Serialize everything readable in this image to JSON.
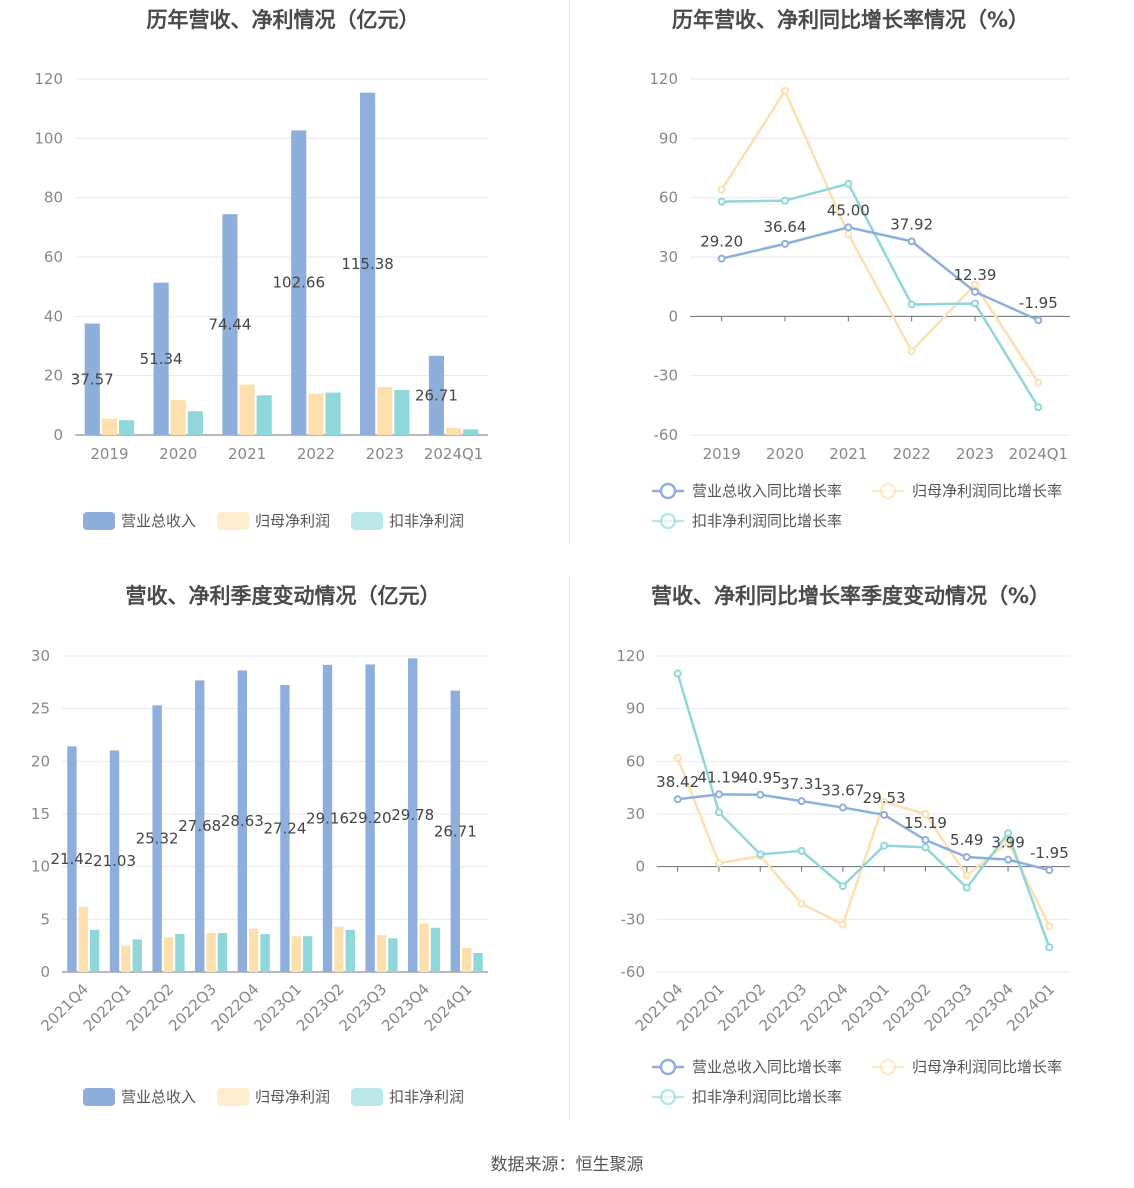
{
  "footer": "数据来源：恒生聚源",
  "legend_bar": [
    "营业总收入",
    "归母净利润",
    "扣非净利润"
  ],
  "legend_line": [
    "营业总收入同比增长率",
    "归母净利润同比增长率",
    "扣非净利润同比增长率"
  ],
  "colors": {
    "revenue": "#8eaedc",
    "netprofit": "#fde0ae",
    "deducted": "#8fd7d8",
    "grid": "#e6e9f0",
    "axis": "#6e7079",
    "tick": "#888888"
  },
  "chart_data": [
    {
      "type": "bar",
      "title": "历年营收、净利情况（亿元）",
      "categories": [
        "2019",
        "2020",
        "2021",
        "2022",
        "2023",
        "2024Q1"
      ],
      "ylim": [
        0,
        120
      ],
      "yticks": [
        0,
        20,
        40,
        60,
        80,
        100,
        120
      ],
      "series": [
        {
          "name": "营业总收入",
          "values": [
            37.57,
            51.34,
            74.44,
            102.66,
            115.38,
            26.71
          ],
          "labels": [
            "37.57",
            "51.34",
            "74.44",
            "102.66",
            "115.38",
            "26.71"
          ]
        },
        {
          "name": "归母净利润",
          "values": [
            5.5,
            11.8,
            17.0,
            13.9,
            16.2,
            2.4
          ]
        },
        {
          "name": "扣非净利润",
          "values": [
            5.0,
            8.0,
            13.4,
            14.3,
            15.2,
            1.9
          ]
        }
      ],
      "legend": "bottom"
    },
    {
      "type": "line",
      "title": "历年营收、净利同比增长率情况（%）",
      "categories": [
        "2019",
        "2020",
        "2021",
        "2022",
        "2023",
        "2024Q1"
      ],
      "ylim": [
        -60,
        120
      ],
      "yticks": [
        -60,
        -30,
        0,
        30,
        60,
        90,
        120
      ],
      "series": [
        {
          "name": "营业总收入同比增长率",
          "values": [
            29.2,
            36.64,
            45.0,
            37.92,
            12.39,
            -1.95
          ],
          "labels": [
            "29.20",
            "36.64",
            "45.00",
            "37.92",
            "12.39",
            "-1.95"
          ]
        },
        {
          "name": "归母净利润同比增长率",
          "values": [
            64.0,
            114.0,
            41.5,
            -17.5,
            16.0,
            -33.5
          ]
        },
        {
          "name": "扣非净利润同比增长率",
          "values": [
            58.0,
            58.5,
            67.0,
            6.0,
            6.5,
            -46.0
          ]
        }
      ],
      "legend": "bottom"
    },
    {
      "type": "bar",
      "title": "营收、净利季度变动情况（亿元）",
      "categories": [
        "2021Q4",
        "2022Q1",
        "2022Q2",
        "2022Q3",
        "2022Q4",
        "2023Q1",
        "2023Q2",
        "2023Q3",
        "2023Q4",
        "2024Q1"
      ],
      "ylim": [
        0,
        30
      ],
      "yticks": [
        0,
        5,
        10,
        15,
        20,
        25,
        30
      ],
      "series": [
        {
          "name": "营业总收入",
          "values": [
            21.42,
            21.03,
            25.32,
            27.68,
            28.63,
            27.24,
            29.16,
            29.2,
            29.78,
            26.71
          ],
          "labels": [
            "21.42",
            "21.03",
            "25.32",
            "27.68",
            "28.63",
            "27.24",
            "29.16",
            "29.20",
            "29.78",
            "26.71"
          ]
        },
        {
          "name": "归母净利润",
          "values": [
            6.2,
            2.5,
            3.3,
            3.7,
            4.1,
            3.4,
            4.3,
            3.5,
            4.6,
            2.3
          ]
        },
        {
          "name": "扣非净利润",
          "values": [
            4.0,
            3.1,
            3.6,
            3.7,
            3.6,
            3.4,
            4.0,
            3.2,
            4.2,
            1.8
          ]
        }
      ],
      "legend": "bottom"
    },
    {
      "type": "line",
      "title": "营收、净利同比增长率季度变动情况（%）",
      "categories": [
        "2021Q4",
        "2022Q1",
        "2022Q2",
        "2022Q3",
        "2022Q4",
        "2023Q1",
        "2023Q2",
        "2023Q3",
        "2023Q4",
        "2024Q1"
      ],
      "ylim": [
        -60,
        120
      ],
      "yticks": [
        -60,
        -30,
        0,
        30,
        60,
        90,
        120
      ],
      "series": [
        {
          "name": "营业总收入同比增长率",
          "values": [
            38.42,
            41.19,
            40.95,
            37.31,
            33.67,
            29.53,
            15.19,
            5.49,
            3.99,
            -1.95
          ],
          "labels": [
            "38.42",
            "41.19",
            "40.95",
            "37.31",
            "33.67",
            "29.53",
            "15.19",
            "5.49",
            "3.99",
            "-1.95"
          ]
        },
        {
          "name": "归母净利润同比增长率",
          "values": [
            62.0,
            2.0,
            6.0,
            -21.0,
            -33.0,
            37.0,
            30.0,
            -5.0,
            14.0,
            -34.0
          ]
        },
        {
          "name": "扣非净利润同比增长率",
          "values": [
            110.0,
            31.0,
            7.0,
            9.0,
            -11.0,
            12.0,
            11.0,
            -12.0,
            19.0,
            -46.0
          ]
        }
      ],
      "legend": "bottom"
    }
  ]
}
